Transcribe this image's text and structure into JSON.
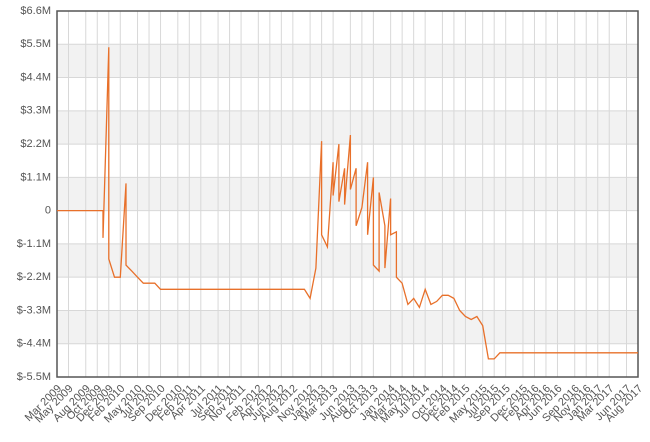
{
  "chart_data": {
    "type": "line",
    "color": "#e8702a",
    "grid": true,
    "x": [
      "2009-03",
      "2009-06",
      "2009-09",
      "2009-11",
      "2009-11",
      "2009-12",
      "2009-12",
      "2009-12",
      "2009-12",
      "2010-01",
      "2010-02",
      "2010-03",
      "2010-03",
      "2010-04",
      "2010-05",
      "2010-06",
      "2010-08",
      "2010-09",
      "2012-10",
      "2012-11",
      "2012-12",
      "2013-01",
      "2013-01",
      "2013-01",
      "2013-02",
      "2013-03",
      "2013-03",
      "2013-04",
      "2013-04",
      "2013-05",
      "2013-05",
      "2013-06",
      "2013-06",
      "2013-07",
      "2013-07",
      "2013-08",
      "2013-09",
      "2013-09",
      "2013-10",
      "2013-10",
      "2013-11",
      "2013-11",
      "2013-12",
      "2013-12",
      "2014-01",
      "2014-01",
      "2014-02",
      "2014-02",
      "2014-03",
      "2014-04",
      "2014-05",
      "2014-06",
      "2014-07",
      "2014-08",
      "2014-09",
      "2014-10",
      "2014-11",
      "2014-12",
      "2015-01",
      "2015-02",
      "2015-03",
      "2015-04",
      "2015-05",
      "2015-06",
      "2015-07",
      "2015-08",
      "2017-08"
    ],
    "values": [
      0,
      0,
      0,
      0,
      -900000,
      5400000,
      3300000,
      1200000,
      -1600000,
      -2200000,
      -2200000,
      900000,
      -1800000,
      -2000000,
      -2200000,
      -2400000,
      -2400000,
      -2600000,
      -2600000,
      -2900000,
      -1900000,
      2300000,
      600000,
      -800000,
      -1200000,
      1600000,
      500000,
      2200000,
      300000,
      1400000,
      200000,
      2500000,
      700000,
      1400000,
      -500000,
      100000,
      1600000,
      -800000,
      1100000,
      -1800000,
      -2000000,
      600000,
      -500000,
      -1900000,
      400000,
      -800000,
      -700000,
      -2200000,
      -2400000,
      -3100000,
      -2900000,
      -3200000,
      -2600000,
      -3100000,
      -3000000,
      -2800000,
      -2800000,
      -2900000,
      -3300000,
      -3500000,
      -3600000,
      -3500000,
      -3800000,
      -4900000,
      -4900000,
      -4700000,
      -4700000
    ],
    "ylim": [
      -5500000,
      6600000
    ],
    "yticks": [
      {
        "value": 6600000,
        "label": "$6.6M"
      },
      {
        "value": 5500000,
        "label": "$5.5M"
      },
      {
        "value": 4400000,
        "label": "$4.4M"
      },
      {
        "value": 3300000,
        "label": "$3.3M"
      },
      {
        "value": 2200000,
        "label": "$2.2M"
      },
      {
        "value": 1100000,
        "label": "$1.1M"
      },
      0,
      {
        "value": -1100000,
        "label": "$-1.1M"
      },
      {
        "value": -2200000,
        "label": "$-2.2M"
      },
      {
        "value": -3300000,
        "label": "$-3.3M"
      },
      {
        "value": -4400000,
        "label": "$-4.4M"
      },
      {
        "value": -5500000,
        "label": "$-5.5M"
      }
    ],
    "xlim": [
      "2009-03",
      "2017-08"
    ],
    "xticks": [
      {
        "value": "2009-03",
        "label": "Mar 2009"
      },
      {
        "value": "2009-05",
        "label": "May 2009"
      },
      {
        "value": "2009-08",
        "label": "Aug 2009"
      },
      {
        "value": "2009-10",
        "label": "Oct 2009"
      },
      {
        "value": "2009-12",
        "label": "Dec 2009"
      },
      {
        "value": "2010-02",
        "label": "Feb 2010"
      },
      {
        "value": "2010-05",
        "label": "May 2010"
      },
      {
        "value": "2010-07",
        "label": "Jul 2010"
      },
      {
        "value": "2010-09",
        "label": "Sep 2010"
      },
      {
        "value": "2010-12",
        "label": "Dec 2010"
      },
      {
        "value": "2011-02",
        "label": "Feb 2011"
      },
      {
        "value": "2011-04",
        "label": "Apr 2011"
      },
      {
        "value": "2011-07",
        "label": "Jul 2011"
      },
      {
        "value": "2011-09",
        "label": "Sep 2011"
      },
      {
        "value": "2011-11",
        "label": "Nov 2011"
      },
      {
        "value": "2012-02",
        "label": "Feb 2012"
      },
      {
        "value": "2012-04",
        "label": "Apr 2012"
      },
      {
        "value": "2012-06",
        "label": "Jun 2012"
      },
      {
        "value": "2012-08",
        "label": "Aug 2012"
      },
      {
        "value": "2012-11",
        "label": "Nov 2012"
      },
      {
        "value": "2013-01",
        "label": "Jan 2013"
      },
      {
        "value": "2013-03",
        "label": "Mar 2013"
      },
      {
        "value": "2013-06",
        "label": "Jun 2013"
      },
      {
        "value": "2013-08",
        "label": "Aug 2013"
      },
      {
        "value": "2013-10",
        "label": "Oct 2013"
      },
      {
        "value": "2014-01",
        "label": "Jan 2014"
      },
      {
        "value": "2014-03",
        "label": "Mar 2014"
      },
      {
        "value": "2014-05",
        "label": "May 2014"
      },
      {
        "value": "2014-07",
        "label": "Jul 2014"
      },
      {
        "value": "2014-10",
        "label": "Oct 2014"
      },
      {
        "value": "2014-12",
        "label": "Dec 2014"
      },
      {
        "value": "2015-02",
        "label": "Feb 2015"
      },
      {
        "value": "2015-05",
        "label": "May 2015"
      },
      {
        "value": "2015-07",
        "label": "Jul 2015"
      },
      {
        "value": "2015-09",
        "label": "Sep 2015"
      },
      {
        "value": "2015-12",
        "label": "Dec 2015"
      },
      {
        "value": "2016-02",
        "label": "Feb 2016"
      },
      {
        "value": "2016-04",
        "label": "Apr 2016"
      },
      {
        "value": "2016-06",
        "label": "Jun 2016"
      },
      {
        "value": "2016-09",
        "label": "Sep 2016"
      },
      {
        "value": "2016-11",
        "label": "Nov 2016"
      },
      {
        "value": "2017-01",
        "label": "Jan 2017"
      },
      {
        "value": "2017-03",
        "label": "Mar 2017"
      },
      {
        "value": "2017-06",
        "label": "Jun 2017"
      },
      {
        "value": "2017-08",
        "label": "Aug 2017"
      }
    ]
  }
}
